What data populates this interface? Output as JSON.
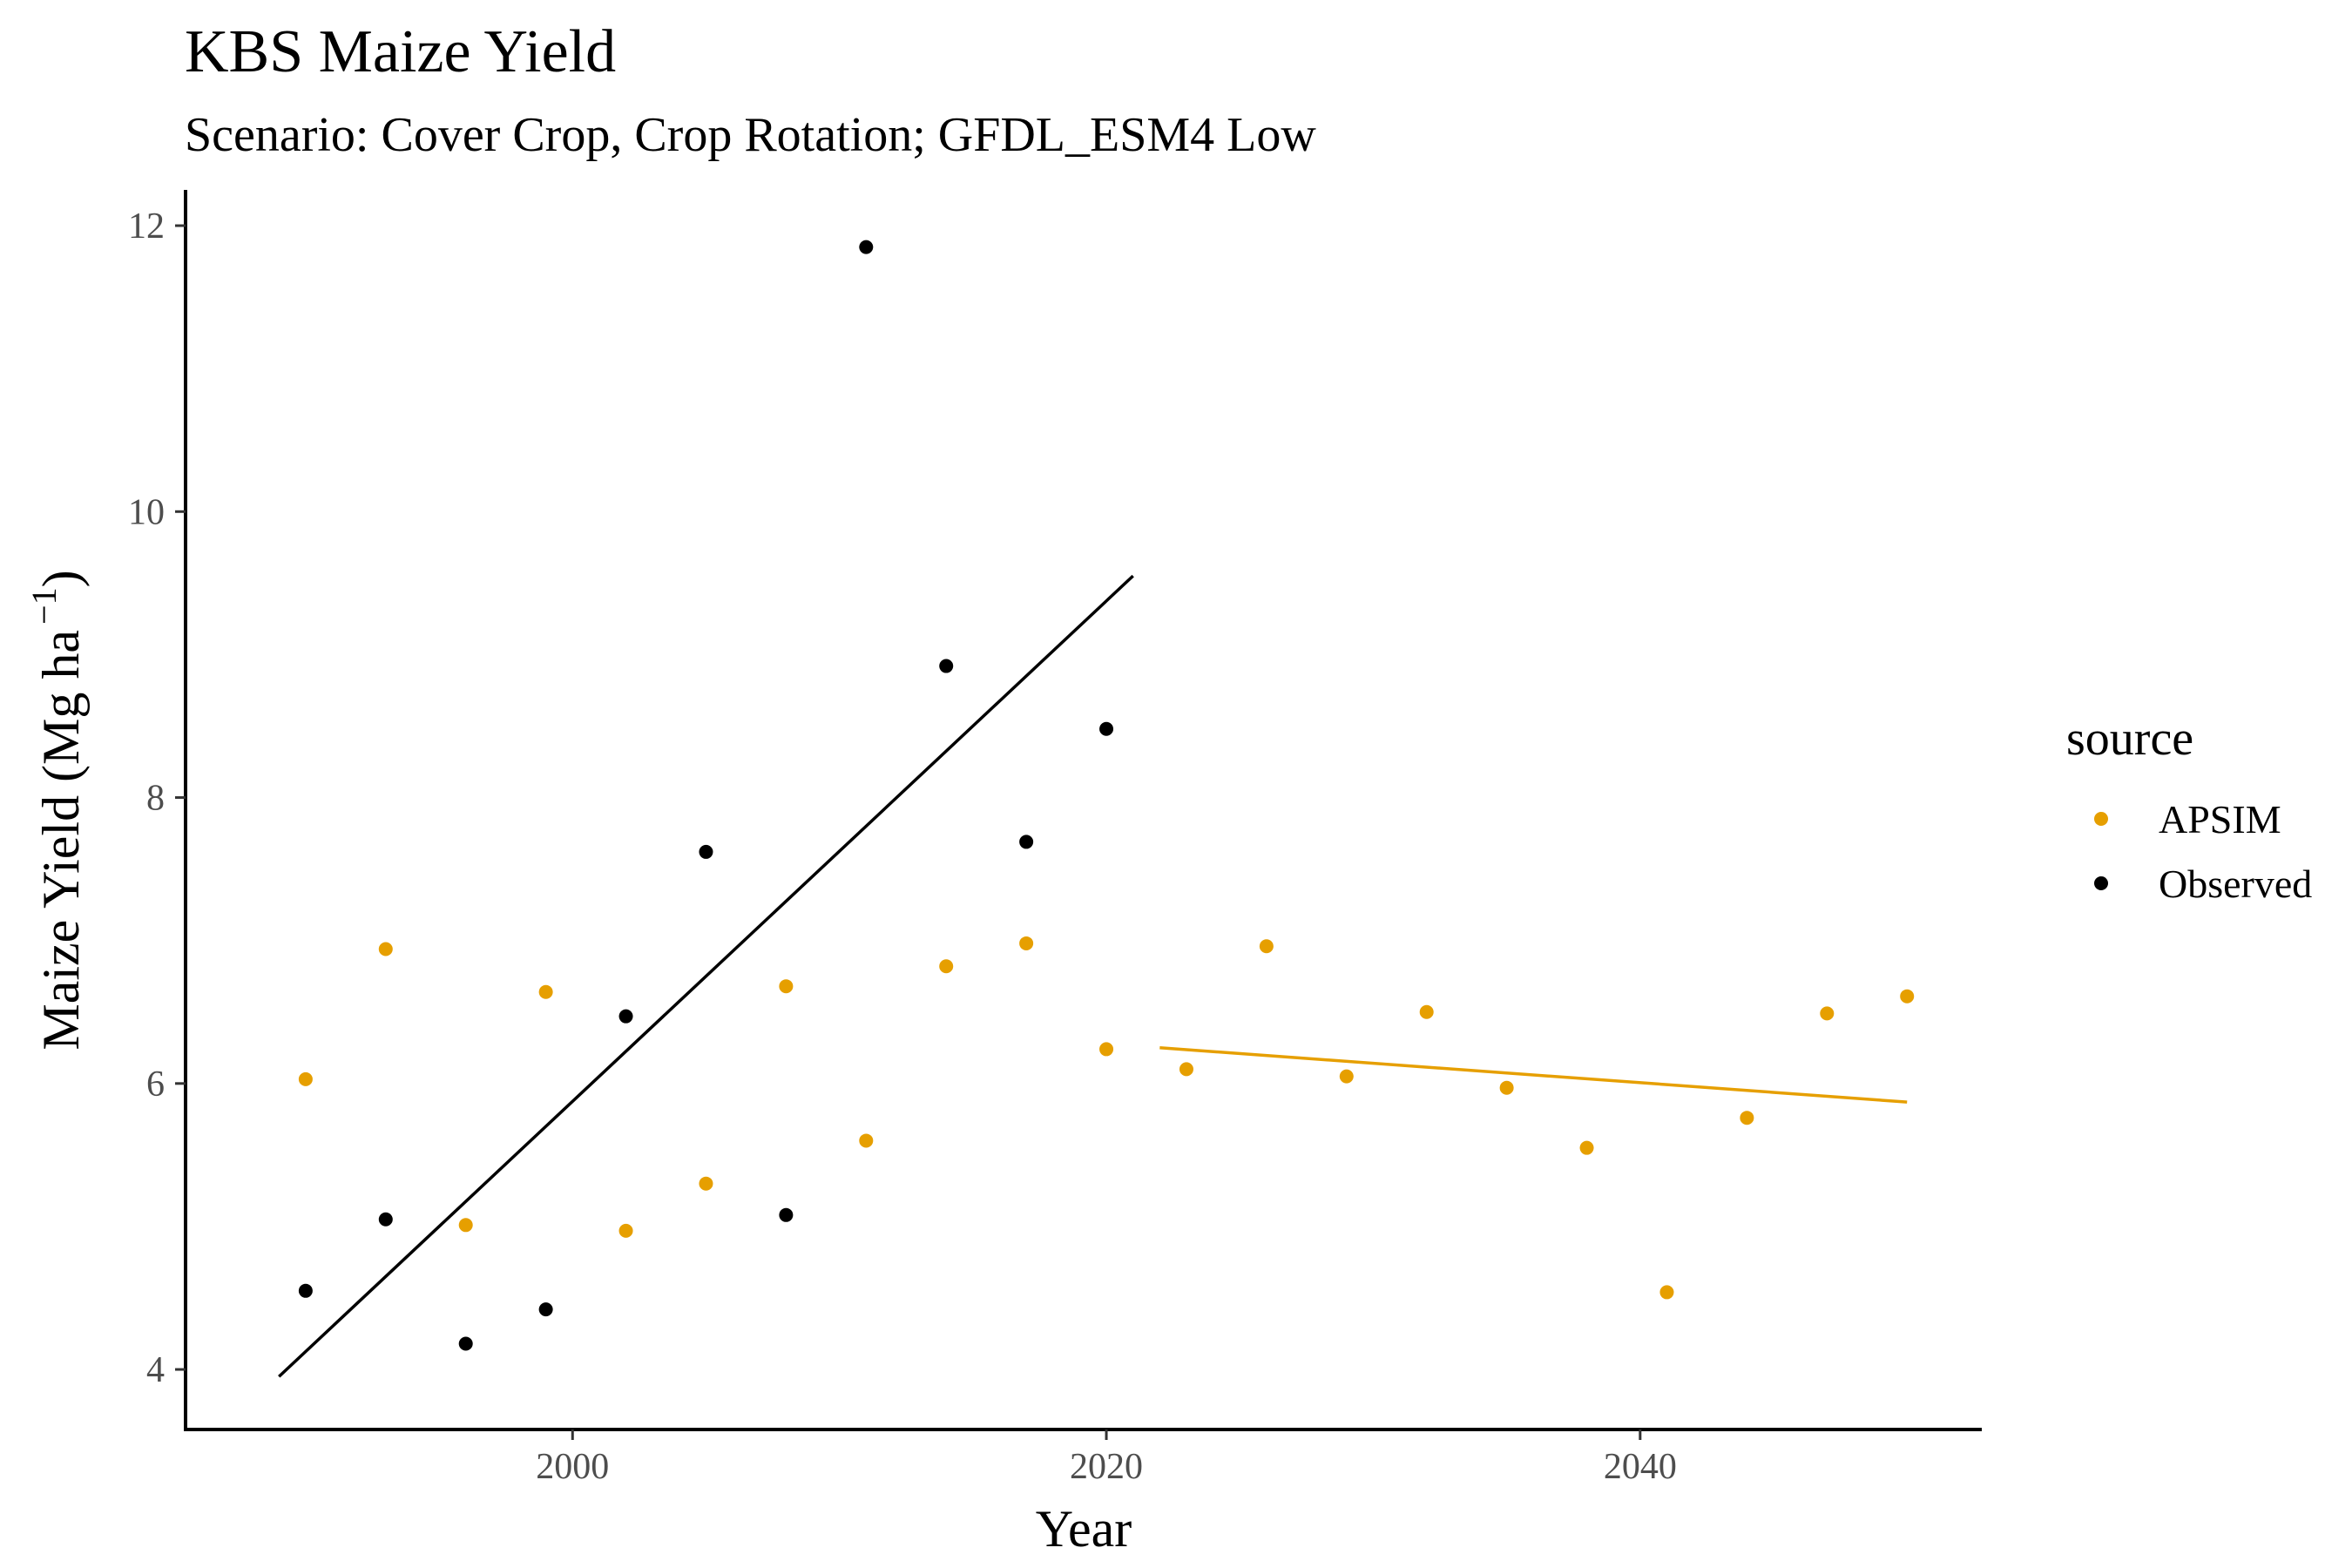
{
  "chart_data": {
    "type": "scatter",
    "title": "KBS Maize Yield",
    "subtitle": "Scenario: Cover Crop, Crop Rotation; GFDL_ESM4 Low",
    "xlabel": "Year",
    "ylabel": "Maize Yield (Mg ha",
    "ylabel_sup": "−1",
    "ylabel_close": ")",
    "xlim": [
      1985.5,
      2052.8
    ],
    "ylim": [
      3.58,
      12.25
    ],
    "xticks": [
      2000,
      2020,
      2040
    ],
    "yticks": [
      4,
      6,
      8,
      10,
      12
    ],
    "grid": false,
    "legend": {
      "title": "source",
      "position": "right",
      "entries": [
        {
          "label": "APSIM",
          "color": "#E69F00"
        },
        {
          "label": "Observed",
          "color": "#000000"
        }
      ]
    },
    "series": [
      {
        "name": "APSIM",
        "color": "#E69F00",
        "points": [
          {
            "x": 1990,
            "y": 6.03
          },
          {
            "x": 1993,
            "y": 6.94
          },
          {
            "x": 1996,
            "y": 5.01
          },
          {
            "x": 1999,
            "y": 6.64
          },
          {
            "x": 2002,
            "y": 4.97
          },
          {
            "x": 2005,
            "y": 5.3
          },
          {
            "x": 2008,
            "y": 6.68
          },
          {
            "x": 2011,
            "y": 5.6
          },
          {
            "x": 2014,
            "y": 6.82
          },
          {
            "x": 2017,
            "y": 6.98
          },
          {
            "x": 2020,
            "y": 6.24
          },
          {
            "x": 2023,
            "y": 6.1
          },
          {
            "x": 2026,
            "y": 6.96
          },
          {
            "x": 2029,
            "y": 6.05
          },
          {
            "x": 2032,
            "y": 6.5
          },
          {
            "x": 2035,
            "y": 5.97
          },
          {
            "x": 2038,
            "y": 5.55
          },
          {
            "x": 2041,
            "y": 4.54
          },
          {
            "x": 2044,
            "y": 5.76
          },
          {
            "x": 2047,
            "y": 6.49
          },
          {
            "x": 2050,
            "y": 6.61
          }
        ],
        "trend": {
          "x": [
            2022,
            2050
          ],
          "y": [
            6.25,
            5.87
          ]
        }
      },
      {
        "name": "Observed",
        "color": "#000000",
        "points": [
          {
            "x": 1990,
            "y": 4.55
          },
          {
            "x": 1993,
            "y": 5.05
          },
          {
            "x": 1996,
            "y": 4.18
          },
          {
            "x": 1999,
            "y": 4.42
          },
          {
            "x": 2002,
            "y": 6.47
          },
          {
            "x": 2005,
            "y": 7.62
          },
          {
            "x": 2008,
            "y": 5.08
          },
          {
            "x": 2011,
            "y": 11.85
          },
          {
            "x": 2014,
            "y": 8.92
          },
          {
            "x": 2017,
            "y": 7.69
          },
          {
            "x": 2020,
            "y": 8.48
          }
        ],
        "trend": {
          "x": [
            1989,
            2021
          ],
          "y": [
            3.95,
            9.55
          ]
        }
      }
    ]
  }
}
